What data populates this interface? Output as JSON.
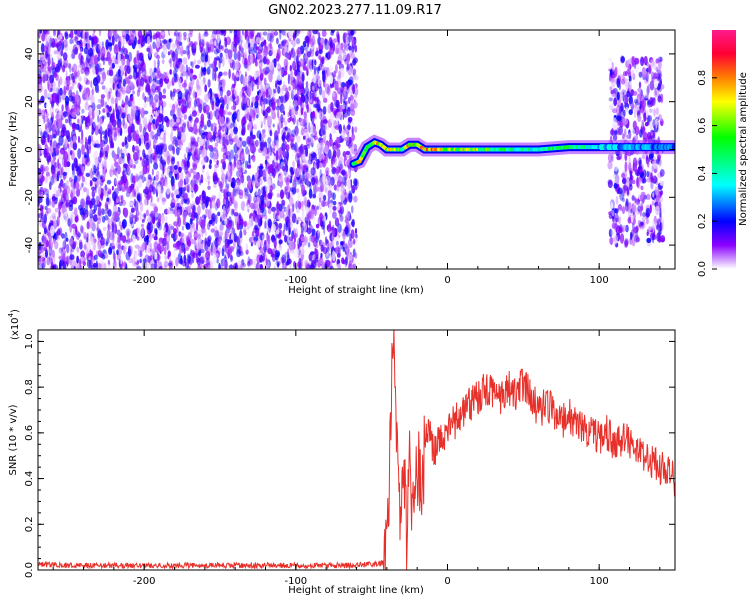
{
  "title": "GN02.2023.277.11.09.R17",
  "chart_data": [
    {
      "type": "heatmap",
      "xlabel": "Height of straight line (km)",
      "ylabel": "Frequency (Hz)",
      "xlim": [
        -270,
        150
      ],
      "ylim": [
        -50,
        50
      ],
      "x_ticks": [
        -200,
        -100,
        0,
        100
      ],
      "x_tick_labels": [
        "-200",
        "-100",
        "0",
        "100"
      ],
      "y_ticks": [
        -40,
        -20,
        0,
        20,
        40
      ],
      "y_tick_labels": [
        "-40",
        "-20",
        "0",
        "20",
        "40"
      ],
      "colorbar": {
        "label": "Normalized spectral amplitude",
        "range": [
          0.0,
          1.0
        ],
        "ticks": [
          0.0,
          0.2,
          0.4,
          0.6,
          0.8
        ],
        "tick_labels": [
          "0.0",
          "0.2",
          "0.4",
          "0.6",
          "0.8"
        ],
        "colormap": [
          "#ffffff",
          "#8a00ff",
          "#0000ff",
          "#00ffff",
          "#00ff00",
          "#ffff00",
          "#ff8000",
          "#ff0033",
          "#ff1a8c"
        ]
      },
      "noise_regions": [
        {
          "x_range": [
            -270,
            -60
          ],
          "y_range": [
            -50,
            50
          ],
          "amplitude_range": [
            0.0,
            0.2
          ]
        },
        {
          "x_range": [
            107,
            142
          ],
          "y_range": [
            -40,
            38
          ],
          "amplitude_range": [
            0.0,
            0.2
          ]
        }
      ],
      "signal_track": [
        {
          "x": -62,
          "y": -6,
          "amplitude": 0.5
        },
        {
          "x": -58,
          "y": -5,
          "amplitude": 0.95
        },
        {
          "x": -53,
          "y": 1,
          "amplitude": 0.6
        },
        {
          "x": -48,
          "y": 3,
          "amplitude": 0.8
        },
        {
          "x": -44,
          "y": 2,
          "amplitude": 0.85
        },
        {
          "x": -40,
          "y": 0,
          "amplitude": 0.7
        },
        {
          "x": -35,
          "y": 0,
          "amplitude": 0.9
        },
        {
          "x": -30,
          "y": 0,
          "amplitude": 0.5
        },
        {
          "x": -25,
          "y": 2,
          "amplitude": 0.9
        },
        {
          "x": -20,
          "y": 2,
          "amplitude": 0.85
        },
        {
          "x": -15,
          "y": 0,
          "amplitude": 0.9
        },
        {
          "x": -10,
          "y": 0,
          "amplitude": 0.9
        },
        {
          "x": -5,
          "y": 0,
          "amplitude": 0.85
        },
        {
          "x": 0,
          "y": 0,
          "amplitude": 0.8
        },
        {
          "x": 10,
          "y": 0,
          "amplitude": 0.75
        },
        {
          "x": 20,
          "y": 0,
          "amplitude": 0.7
        },
        {
          "x": 40,
          "y": 0,
          "amplitude": 0.55
        },
        {
          "x": 60,
          "y": 0,
          "amplitude": 0.5
        },
        {
          "x": 80,
          "y": 1,
          "amplitude": 0.6
        },
        {
          "x": 100,
          "y": 1,
          "amplitude": 0.45
        },
        {
          "x": 115,
          "y": 1,
          "amplitude": 0.35
        },
        {
          "x": 130,
          "y": 1,
          "amplitude": 0.35
        },
        {
          "x": 150,
          "y": 1,
          "amplitude": 0.3
        }
      ]
    },
    {
      "type": "line",
      "xlabel": "Height of straight line (km)",
      "ylabel": "SNR (10 * v/v)",
      "y_scale_label": "(x10",
      "y_scale_exponent": "4",
      "xlim": [
        -270,
        150
      ],
      "ylim": [
        0,
        1.05
      ],
      "x_ticks": [
        -200,
        -100,
        0,
        100
      ],
      "x_tick_labels": [
        "-200",
        "-100",
        "0",
        "100"
      ],
      "y_ticks": [
        0.0,
        0.2,
        0.4,
        0.6,
        0.8,
        1.0
      ],
      "y_tick_labels": [
        "0.0",
        "0.2",
        "0.4",
        "0.6",
        "0.8",
        "1.0"
      ],
      "color": "#e8302a",
      "series": [
        {
          "x": [
            -270,
            -250,
            -200,
            -150,
            -100,
            -60,
            -42,
            -39,
            -37,
            -35,
            -33,
            -31,
            -29,
            -27,
            -25,
            -23,
            -21,
            -19,
            -17,
            -15,
            -12,
            -9,
            -6,
            -3,
            0,
            5,
            10,
            15,
            20,
            25,
            30,
            35,
            40,
            45,
            50,
            55,
            60,
            65,
            70,
            75,
            80,
            85,
            90,
            95,
            100,
            105,
            110,
            115,
            120,
            125,
            130,
            135,
            140,
            145,
            150
          ],
          "y": [
            0.025,
            0.02,
            0.02,
            0.02,
            0.02,
            0.02,
            0.03,
            0.15,
            0.8,
            1.0,
            0.45,
            0.25,
            0.55,
            0.12,
            0.65,
            0.2,
            0.35,
            0.45,
            0.3,
            0.55,
            0.6,
            0.5,
            0.55,
            0.58,
            0.6,
            0.65,
            0.7,
            0.72,
            0.75,
            0.8,
            0.78,
            0.75,
            0.8,
            0.78,
            0.82,
            0.75,
            0.7,
            0.72,
            0.7,
            0.65,
            0.68,
            0.65,
            0.6,
            0.62,
            0.58,
            0.6,
            0.55,
            0.58,
            0.55,
            0.52,
            0.5,
            0.48,
            0.45,
            0.42,
            0.4
          ]
        }
      ]
    }
  ]
}
